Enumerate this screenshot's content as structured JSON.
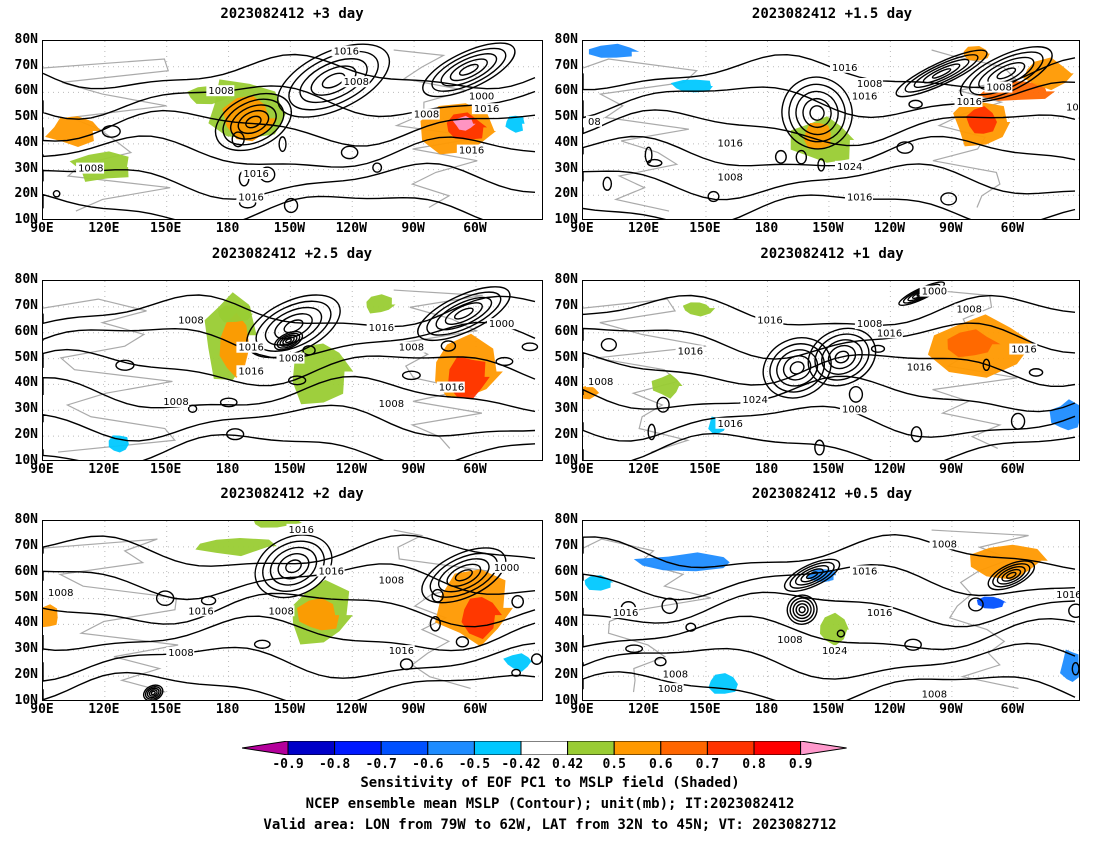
{
  "panels": [
    {
      "title": "2023082412 +3 day"
    },
    {
      "title": "2023082412 +1.5 day"
    },
    {
      "title": "2023082412 +2.5 day"
    },
    {
      "title": "2023082412 +1 day"
    },
    {
      "title": "2023082412 +2 day"
    },
    {
      "title": "2023082412 +0.5 day"
    }
  ],
  "axes": {
    "lat_labels": [
      "80N",
      "70N",
      "60N",
      "50N",
      "40N",
      "30N",
      "20N",
      "10N"
    ],
    "lon_labels": [
      "90E",
      "120E",
      "150E",
      "180",
      "150W",
      "120W",
      "90W",
      "60W"
    ]
  },
  "contour_labels": {
    "p0": [
      "1016",
      "1008",
      "1008",
      "1000",
      "1008",
      "1016",
      "1016",
      "1008",
      "1016",
      "1016"
    ],
    "p1": [
      "1016",
      "1008",
      "1016",
      "1008",
      "1016",
      "1016",
      "1016",
      "1024",
      "1008",
      "1016",
      "08"
    ],
    "p2": [
      "1008",
      "1016",
      "1008",
      "1016",
      "1016",
      "1008",
      "1000",
      "1016",
      "1008",
      "1008"
    ],
    "p3": [
      "1000",
      "1008",
      "1016",
      "1008",
      "1016",
      "1016",
      "1016",
      "1008",
      "1016",
      "1024",
      "1008",
      "1016"
    ],
    "p4": [
      "1016",
      "1016",
      "1008",
      "1008",
      "1000",
      "1016",
      "1008",
      "1008",
      "1016"
    ],
    "p5": [
      "1008",
      "1016",
      "1016",
      "1016",
      "1016",
      "1024",
      "1008",
      "1008",
      "1008",
      "1008"
    ]
  },
  "colorbar": {
    "labels": [
      "-0.9",
      "-0.8",
      "-0.7",
      "-0.6",
      "-0.5",
      "-0.42",
      "0.42",
      "0.5",
      "0.6",
      "0.7",
      "0.8",
      "0.9"
    ],
    "colors": [
      "#b4009b",
      "#0000c8",
      "#0019ff",
      "#0050ff",
      "#1e8cff",
      "#00c8ff",
      "#ffffff",
      "#99cc33",
      "#ff9900",
      "#ff6600",
      "#ff3300",
      "#ff0000",
      "#ff99cc"
    ]
  },
  "captions": [
    "Sensitivity of EOF PC1 to MSLP field (Shaded)",
    "NCEP ensemble mean MSLP (Contour); unit(mb); IT:2023082412",
    "Valid area: LON from 79W to 62W, LAT from 32N to 45N; VT: 2023082712"
  ]
}
